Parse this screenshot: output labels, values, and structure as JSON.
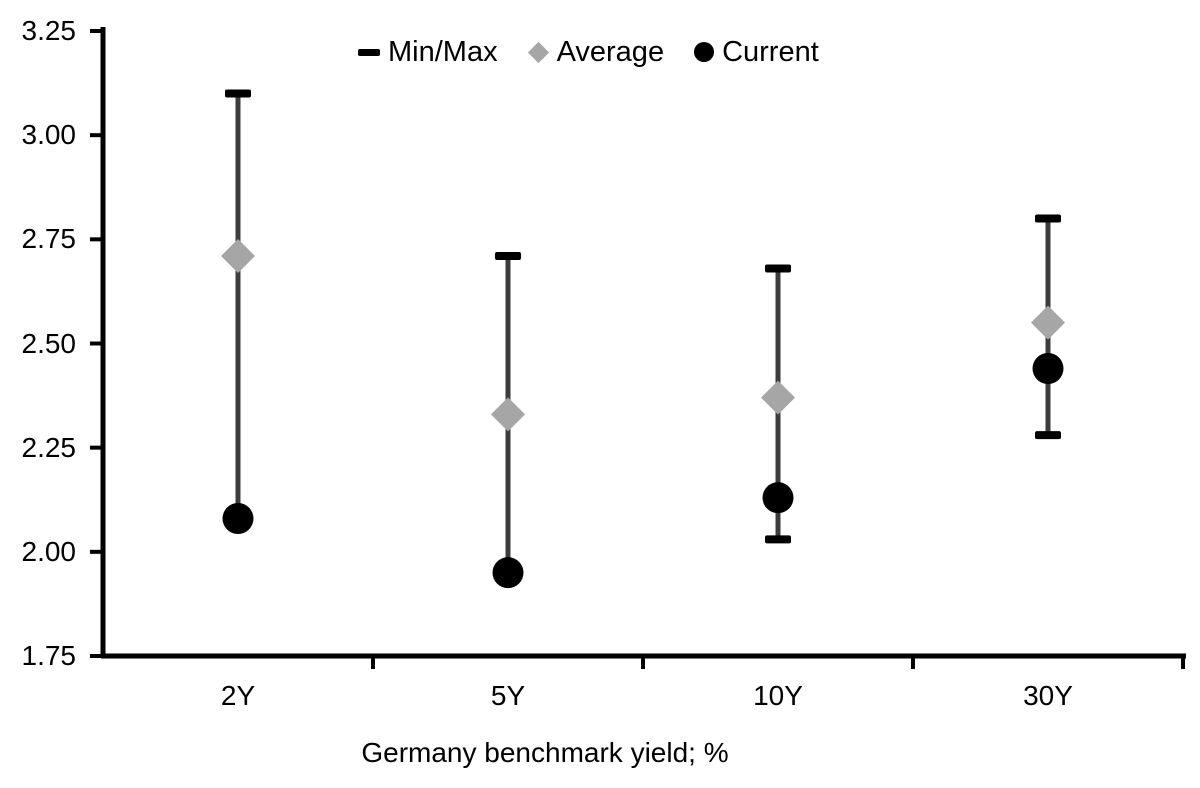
{
  "chart_data": {
    "type": "scatter",
    "subtype": "min-max-range-with-markers",
    "categories": [
      "2Y",
      "5Y",
      "10Y",
      "30Y"
    ],
    "series": [
      {
        "name": "Min/Max",
        "role": "range",
        "marker": "dash",
        "min": [
          2.08,
          1.95,
          2.03,
          2.28
        ],
        "max": [
          3.1,
          2.71,
          2.68,
          2.8
        ]
      },
      {
        "name": "Average",
        "role": "points",
        "marker": "diamond",
        "values": [
          2.71,
          2.33,
          2.37,
          2.55
        ]
      },
      {
        "name": "Current",
        "role": "points",
        "marker": "circle",
        "values": [
          2.08,
          1.95,
          2.13,
          2.44
        ]
      }
    ],
    "xlabel": "Germany benchmark yield; %",
    "ylabel": "",
    "ylim": [
      1.75,
      3.25
    ],
    "ytick_step": 0.25,
    "ytick_labels": [
      "3.25",
      "3.00",
      "2.75",
      "2.50",
      "2.25",
      "2.00",
      "1.75"
    ],
    "grid": false,
    "legend_position": "top-center"
  },
  "legend": {
    "items": [
      {
        "label": "Min/Max",
        "marker": "dash-icon"
      },
      {
        "label": "Average",
        "marker": "diamond-icon"
      },
      {
        "label": "Current",
        "marker": "circle-icon"
      }
    ]
  },
  "colors": {
    "background": "#ffffff",
    "axis": "#000000",
    "text": "#000000",
    "whisker": "#3c3c3c",
    "cap": "#000000",
    "average_marker": "#a6a6a6",
    "current_marker": "#000000"
  }
}
